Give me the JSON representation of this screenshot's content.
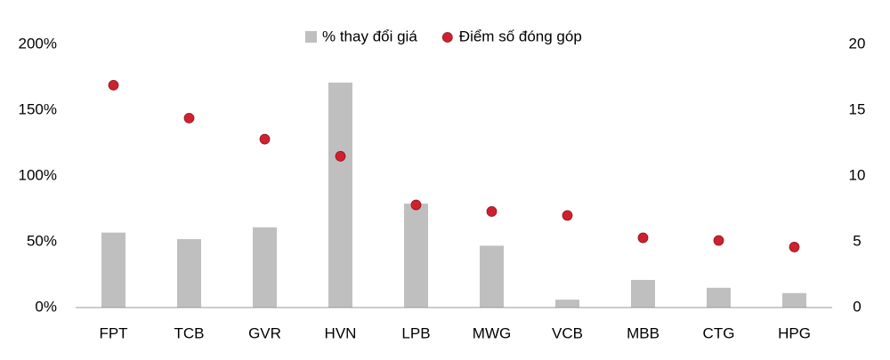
{
  "chart_data": {
    "type": "bar",
    "categories": [
      "FPT",
      "TCB",
      "GVR",
      "HVN",
      "LPB",
      "MWG",
      "VCB",
      "MBB",
      "CTG",
      "HPG"
    ],
    "series": [
      {
        "name": "% thay đổi giá",
        "type": "bar",
        "color": "#bfbfbf",
        "axis": "y",
        "values": [
          57,
          52,
          61,
          171,
          79,
          47,
          6,
          21,
          15,
          11
        ]
      },
      {
        "name": "Điểm số đóng góp",
        "type": "scatter",
        "color": "#d0202e",
        "axis": "y2",
        "values": [
          16.9,
          14.4,
          12.8,
          11.5,
          7.8,
          7.3,
          7.0,
          5.3,
          5.1,
          4.6
        ]
      }
    ],
    "ylim": [
      0,
      200
    ],
    "yticks": [
      {
        "value": 0,
        "label": "0%"
      },
      {
        "value": 50,
        "label": "50%"
      },
      {
        "value": 100,
        "label": "100%"
      },
      {
        "value": 150,
        "label": "150%"
      },
      {
        "value": 200,
        "label": "200%"
      }
    ],
    "y2lim": [
      0,
      20
    ],
    "y2ticks": [
      0,
      5,
      10,
      15,
      20
    ],
    "grid": false,
    "legend": "top"
  }
}
